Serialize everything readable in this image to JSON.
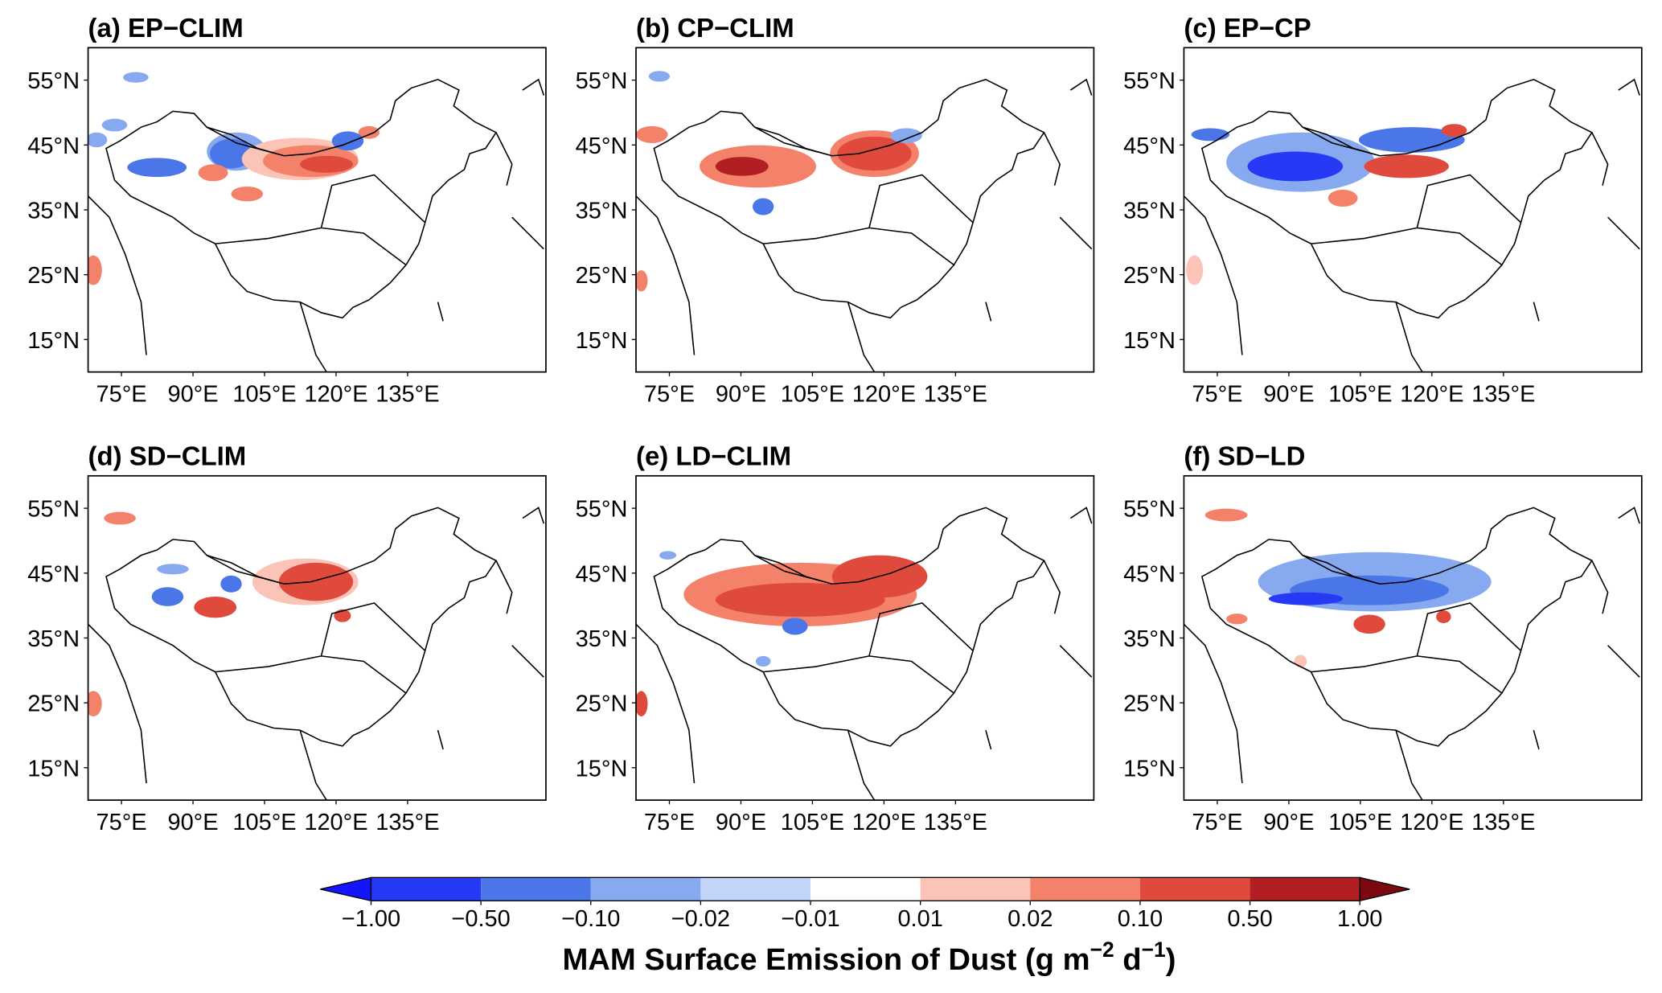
{
  "panels": [
    {
      "title": "(a) EP−CLIM"
    },
    {
      "title": "(b) CP−CLIM"
    },
    {
      "title": "(c) EP−CP"
    },
    {
      "title": "(d) SD−CLIM"
    },
    {
      "title": "(e) LD−CLIM"
    },
    {
      "title": "(f) SD−LD"
    }
  ],
  "axes": {
    "ylim": [
      10,
      60
    ],
    "yticks": [
      {
        "value": 55,
        "label": "55°N"
      },
      {
        "value": 45,
        "label": "45°N"
      },
      {
        "value": 35,
        "label": "35°N"
      },
      {
        "value": 25,
        "label": "25°N"
      },
      {
        "value": 15,
        "label": "15°N"
      }
    ],
    "xlim": [
      68,
      164
    ],
    "xticks": [
      {
        "value": 75,
        "label": "75°E"
      },
      {
        "value": 90,
        "label": "90°E"
      },
      {
        "value": 105,
        "label": "105°E"
      },
      {
        "value": 120,
        "label": "120°E"
      },
      {
        "value": 135,
        "label": "135°E"
      }
    ]
  },
  "colorbar": {
    "ticks": [
      {
        "value": -1,
        "label": "−1.00"
      },
      {
        "value": -0.5,
        "label": "−0.50"
      },
      {
        "value": -0.1,
        "label": "−0.10"
      },
      {
        "value": -0.02,
        "label": "−0.02"
      },
      {
        "value": -0.01,
        "label": "−0.01"
      },
      {
        "value": 0.01,
        "label": "0.01"
      },
      {
        "value": 0.02,
        "label": "0.02"
      },
      {
        "value": 0.1,
        "label": "0.10"
      },
      {
        "value": 0.5,
        "label": "0.50"
      },
      {
        "value": 1,
        "label": "1.00"
      }
    ],
    "colors": [
      "#2639f5",
      "#4a76e8",
      "#86a9ef",
      "#c2d4f7",
      "#ffffff",
      "#fbc4b6",
      "#f4826a",
      "#e04a3c",
      "#b11f22"
    ],
    "extend_colors": [
      "#1414ff",
      "#7a0a10"
    ],
    "label": [
      "MAM Surface Emission of Dust (g m",
      "−2",
      " d",
      "−1",
      ")"
    ]
  }
}
